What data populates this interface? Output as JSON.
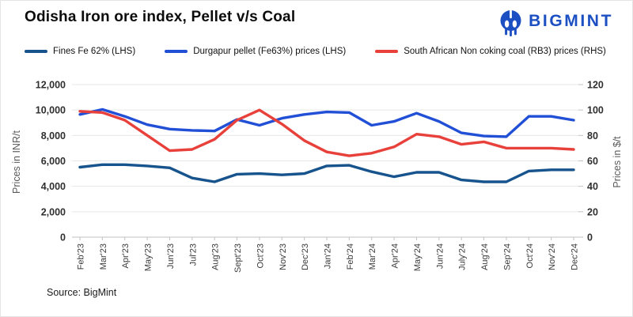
{
  "title": "Odisha Iron ore index, Pellet v/s Coal",
  "logo": {
    "text": "BIGMINT",
    "icon": "bigmint-elephant-monogram-icon"
  },
  "source_text": "Source: BigMint",
  "colors": {
    "fines": "#17538C",
    "pellet": "#2150D6",
    "coal": "#E8403A",
    "brand": "#1B4FC2",
    "grid": "#E7E7E7",
    "axis_line": "#C2C2C2",
    "axis_title_text": "#595959"
  },
  "legend": [
    {
      "label": "Fines Fe 62% (LHS)",
      "color_key": "fines"
    },
    {
      "label": "Durgapur pellet (Fe63%) prices (LHS)",
      "color_key": "pellet"
    },
    {
      "label": "South African Non coking coal (RB3) prices (RHS)",
      "color_key": "coal"
    }
  ],
  "chart_data": {
    "type": "line",
    "categories": [
      "Feb'23",
      "Mar'23",
      "Apr'23",
      "May'23",
      "Jun'23",
      "Jul'23",
      "Aug'23",
      "Sept'23",
      "Oct'23",
      "Nov'23",
      "Dec'23",
      "Jan'24",
      "Feb'24",
      "Mar'24",
      "Apr'24",
      "May'24",
      "Jun'24",
      "July'24",
      "Aug'24",
      "Sep'24",
      "Oct'24",
      "Nov'24",
      "Dec'24"
    ],
    "left_axis": {
      "title": "Prices in INR/t",
      "min": 0,
      "max": 12000,
      "step": 2000,
      "tick_labels": [
        "0",
        "2,000",
        "4,000",
        "6,000",
        "8,000",
        "10,000",
        "12,000"
      ]
    },
    "right_axis": {
      "title": "Prices in $/t",
      "min": 0,
      "max": 120,
      "step": 20,
      "tick_labels": [
        "0",
        "20",
        "40",
        "60",
        "80",
        "100",
        "120"
      ]
    },
    "grid": "horizontal",
    "legend_position": "top",
    "series": [
      {
        "name": "Fines Fe 62% (LHS)",
        "axis": "left",
        "color_key": "fines",
        "values": [
          5500,
          5700,
          5700,
          5600,
          5450,
          4650,
          4350,
          4950,
          5000,
          4900,
          5000,
          5600,
          5650,
          5150,
          4750,
          5100,
          5100,
          4500,
          4350,
          4350,
          5200,
          5300,
          5300
        ]
      },
      {
        "name": "Durgapur pellet (Fe63%) prices (LHS)",
        "axis": "left",
        "color_key": "pellet",
        "values": [
          9650,
          10050,
          9500,
          8850,
          8500,
          8400,
          8350,
          9250,
          8800,
          9350,
          9650,
          9850,
          9800,
          8800,
          9100,
          9750,
          9100,
          8200,
          7950,
          7900,
          9500,
          9500,
          9200
        ]
      },
      {
        "name": "South African Non coking coal (RB3) prices (RHS)",
        "axis": "right",
        "color_key": "coal",
        "values": [
          99,
          98,
          92,
          80,
          68,
          69,
          77,
          92,
          100,
          89,
          76,
          67,
          64,
          66,
          71,
          81,
          79,
          73,
          75,
          70,
          70,
          70,
          69
        ]
      }
    ]
  }
}
